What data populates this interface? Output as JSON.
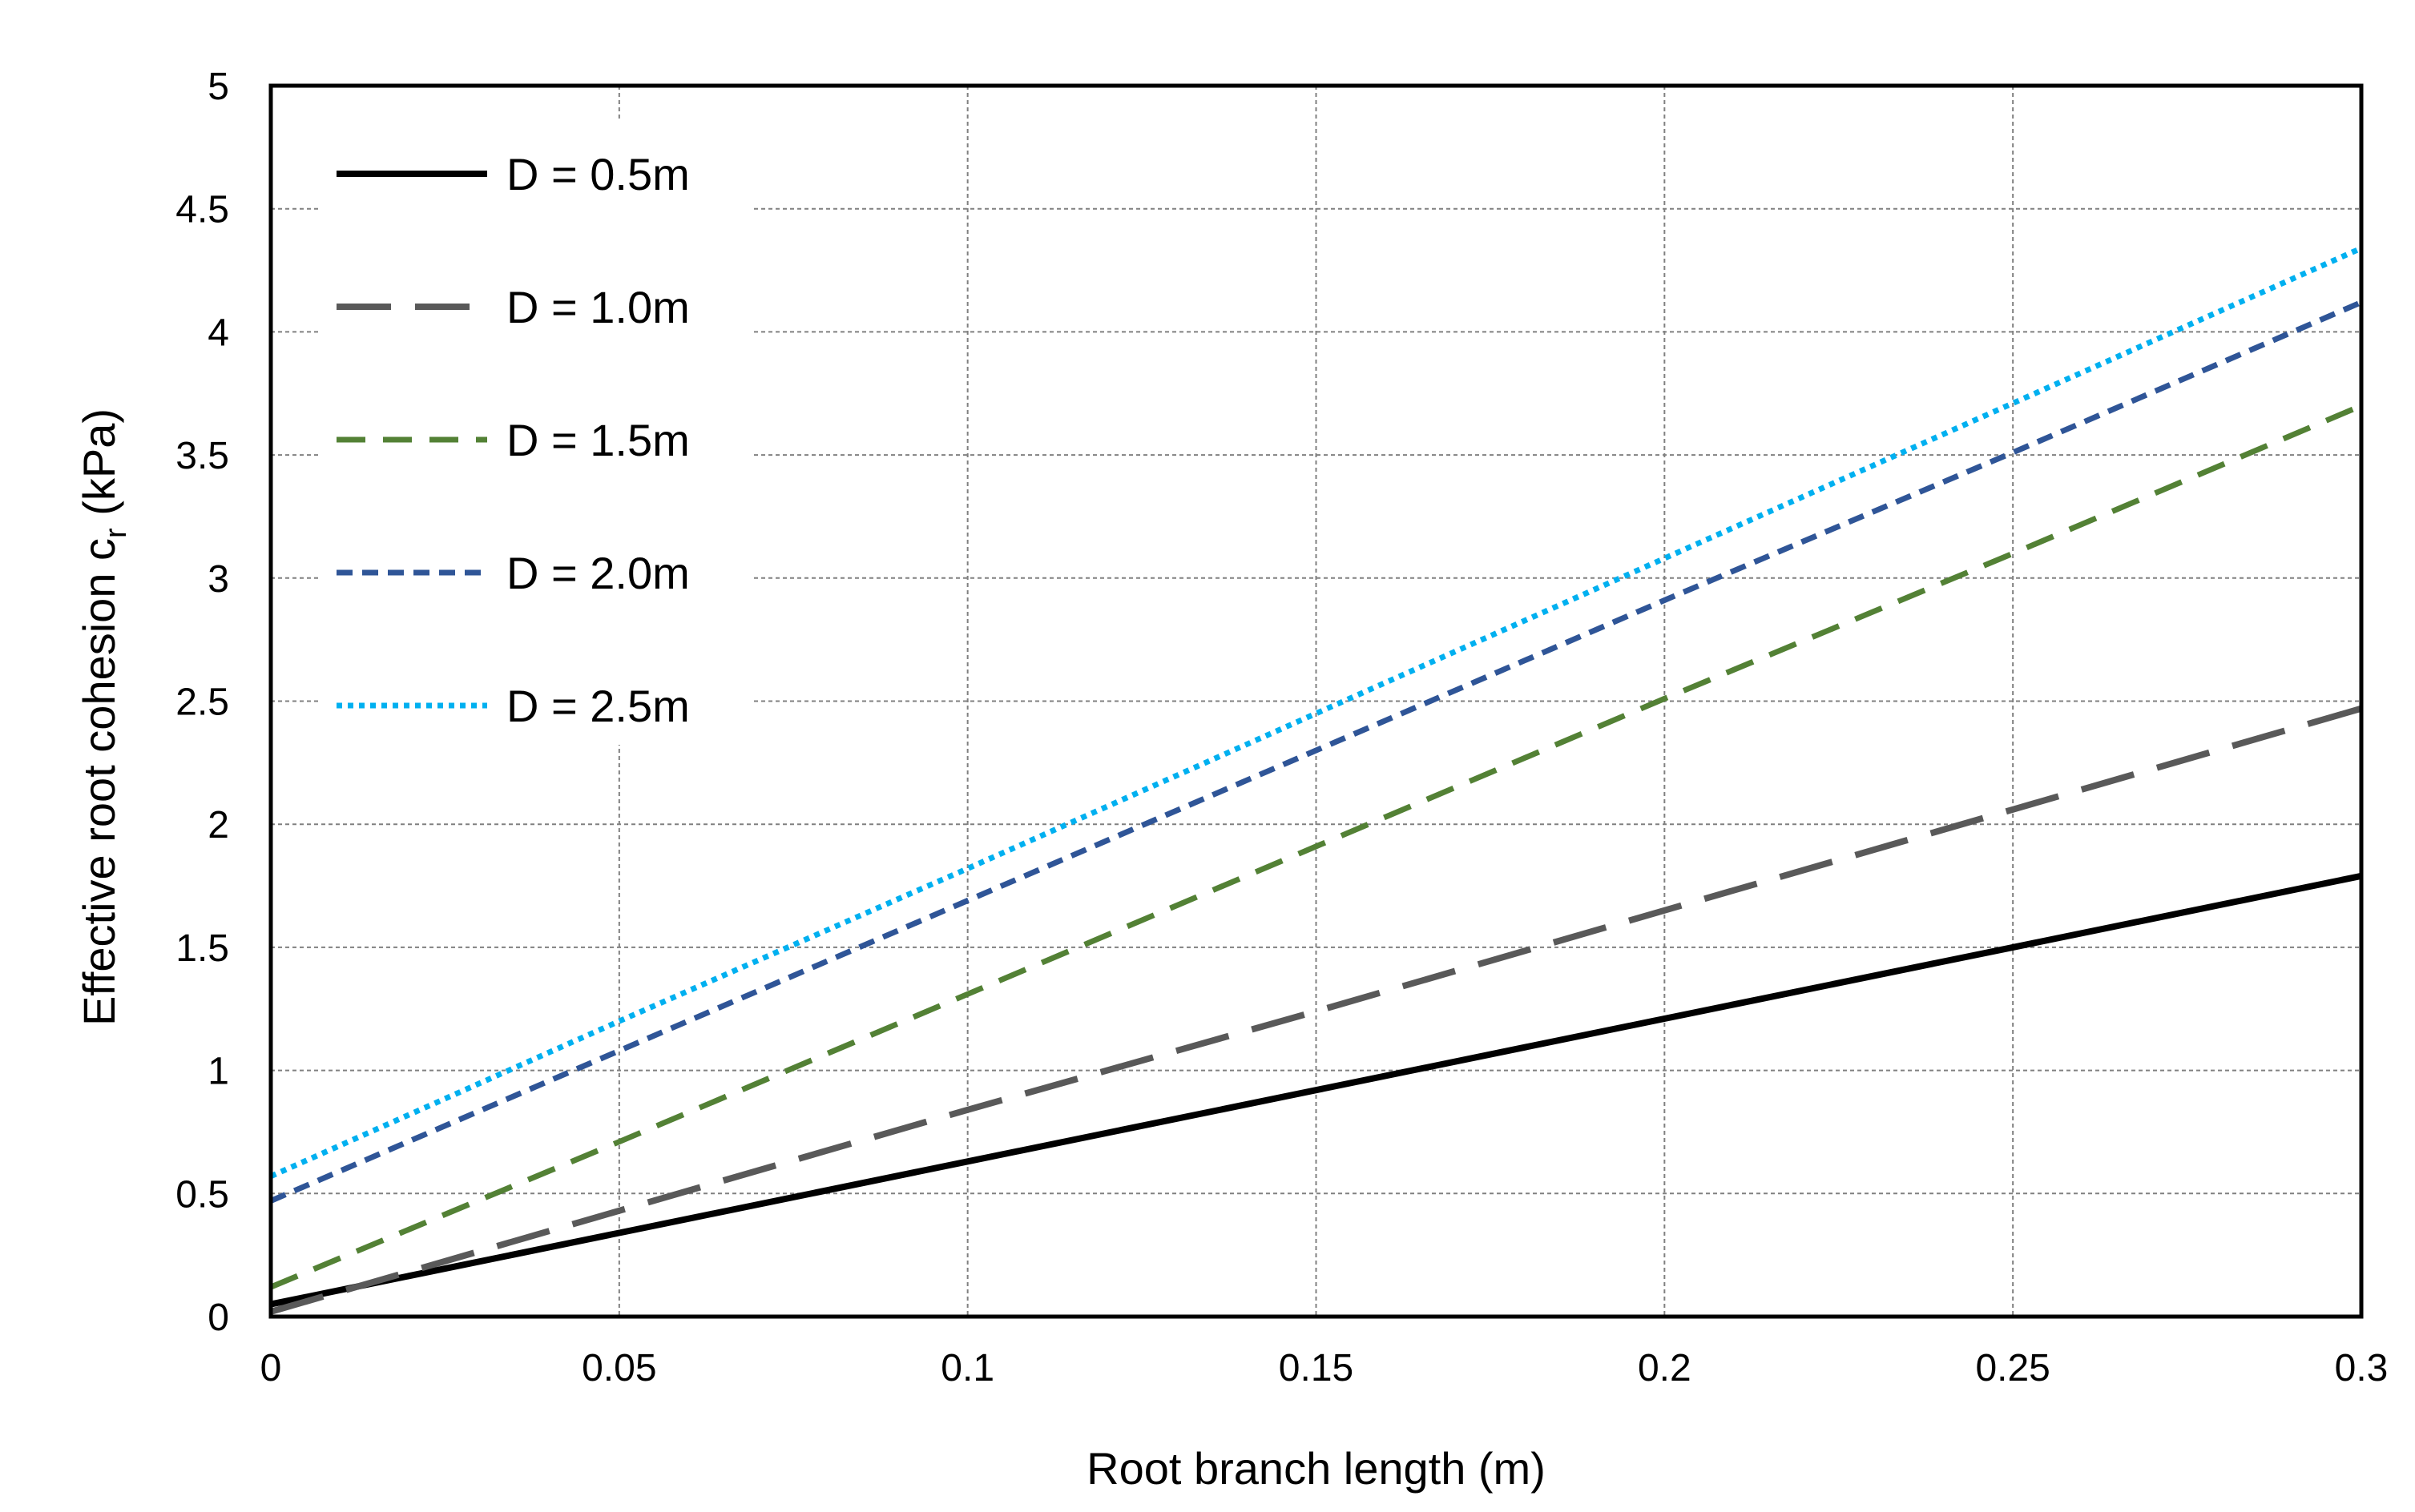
{
  "chart_data": {
    "type": "line",
    "title": "",
    "xlabel": "Root branch length (m)",
    "ylabel": {
      "main": "Effective root cohesion c",
      "subscript": "r",
      "unit": " (kPa)"
    },
    "xlim": [
      0,
      0.3
    ],
    "ylim": [
      0,
      5
    ],
    "x_ticks": [
      "0",
      "0.05",
      "0.1",
      "0.15",
      "0.2",
      "0.25",
      "0.3"
    ],
    "y_ticks": [
      "0",
      "0.5",
      "1",
      "1.5",
      "2",
      "2.5",
      "3",
      "3.5",
      "4",
      "4.5",
      "5"
    ],
    "grid": true,
    "legend_position": "top-left",
    "series": [
      {
        "name": "D = 0.5m",
        "color": "#000000",
        "style": "solid",
        "x": [
          0,
          0.05,
          0.1,
          0.15,
          0.2,
          0.25,
          0.3
        ],
        "y": [
          0.05,
          0.34,
          0.63,
          0.92,
          1.21,
          1.5,
          1.79
        ]
      },
      {
        "name": "D = 1.0m",
        "color": "#595959",
        "style": "long-dash",
        "x": [
          0,
          0.05,
          0.1,
          0.15,
          0.2,
          0.25,
          0.3
        ],
        "y": [
          0.02,
          0.43,
          0.84,
          1.24,
          1.65,
          2.06,
          2.47
        ]
      },
      {
        "name": "D = 1.5m",
        "color": "#538135",
        "style": "dash",
        "x": [
          0,
          0.05,
          0.1,
          0.15,
          0.2,
          0.25,
          0.3
        ],
        "y": [
          0.12,
          0.71,
          1.31,
          1.91,
          2.51,
          3.1,
          3.7
        ]
      },
      {
        "name": "D = 2.0m",
        "color": "#2F5597",
        "style": "short-dash",
        "x": [
          0,
          0.05,
          0.1,
          0.15,
          0.2,
          0.25,
          0.3
        ],
        "y": [
          0.47,
          1.08,
          1.69,
          2.3,
          2.91,
          3.51,
          4.12
        ]
      },
      {
        "name": "D = 2.5m",
        "color": "#00B0F0",
        "style": "dot",
        "x": [
          0,
          0.05,
          0.1,
          0.15,
          0.2,
          0.25,
          0.3
        ],
        "y": [
          0.57,
          1.2,
          1.82,
          2.45,
          3.08,
          3.71,
          4.34
        ]
      }
    ]
  }
}
